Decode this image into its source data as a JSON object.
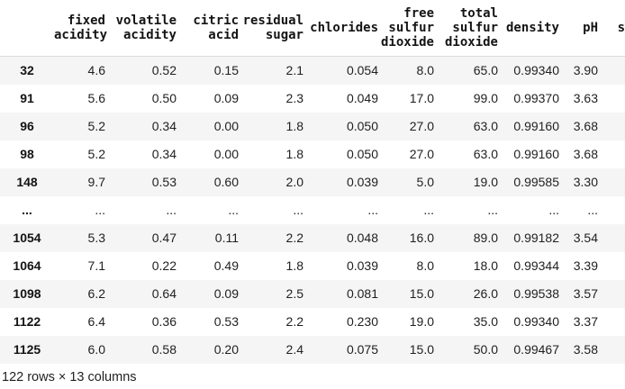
{
  "table": {
    "columns": [
      {
        "label": ""
      },
      {
        "label": "fixed\nacidity"
      },
      {
        "label": "volatile\nacidity"
      },
      {
        "label": "citric\nacid"
      },
      {
        "label": "residual\nsugar"
      },
      {
        "label": "chlorides"
      },
      {
        "label": "free\nsulfur\ndioxide"
      },
      {
        "label": "total\nsulfur\ndioxide"
      },
      {
        "label": "density"
      },
      {
        "label": "pH"
      },
      {
        "label": "s"
      }
    ],
    "rows": [
      {
        "index": "32",
        "cells": [
          "4.6",
          "0.52",
          "0.15",
          "2.1",
          "0.054",
          "8.0",
          "65.0",
          "0.99340",
          "3.90",
          ""
        ]
      },
      {
        "index": "91",
        "cells": [
          "5.6",
          "0.50",
          "0.09",
          "2.3",
          "0.049",
          "17.0",
          "99.0",
          "0.99370",
          "3.63",
          ""
        ]
      },
      {
        "index": "96",
        "cells": [
          "5.2",
          "0.34",
          "0.00",
          "1.8",
          "0.050",
          "27.0",
          "63.0",
          "0.99160",
          "3.68",
          ""
        ]
      },
      {
        "index": "98",
        "cells": [
          "5.2",
          "0.34",
          "0.00",
          "1.8",
          "0.050",
          "27.0",
          "63.0",
          "0.99160",
          "3.68",
          ""
        ]
      },
      {
        "index": "148",
        "cells": [
          "9.7",
          "0.53",
          "0.60",
          "2.0",
          "0.039",
          "5.0",
          "19.0",
          "0.99585",
          "3.30",
          ""
        ]
      },
      {
        "index": "...",
        "cells": [
          "...",
          "...",
          "...",
          "...",
          "...",
          "...",
          "...",
          "...",
          "...",
          ""
        ]
      },
      {
        "index": "1054",
        "cells": [
          "5.3",
          "0.47",
          "0.11",
          "2.2",
          "0.048",
          "16.0",
          "89.0",
          "0.99182",
          "3.54",
          ""
        ]
      },
      {
        "index": "1064",
        "cells": [
          "7.1",
          "0.22",
          "0.49",
          "1.8",
          "0.039",
          "8.0",
          "18.0",
          "0.99344",
          "3.39",
          ""
        ]
      },
      {
        "index": "1098",
        "cells": [
          "6.2",
          "0.64",
          "0.09",
          "2.5",
          "0.081",
          "15.0",
          "26.0",
          "0.99538",
          "3.57",
          ""
        ]
      },
      {
        "index": "1122",
        "cells": [
          "6.4",
          "0.36",
          "0.53",
          "2.2",
          "0.230",
          "19.0",
          "35.0",
          "0.99340",
          "3.37",
          ""
        ]
      },
      {
        "index": "1125",
        "cells": [
          "6.0",
          "0.58",
          "0.20",
          "2.4",
          "0.075",
          "15.0",
          "50.0",
          "0.99467",
          "3.58",
          ""
        ]
      }
    ],
    "footer": "122 rows × 13 columns"
  },
  "colors": {
    "stripe": "#f5f5f5",
    "background": "#ffffff",
    "header_border": "#dcdcdc",
    "text": "#1f1f1f",
    "heading_text": "#141414"
  }
}
